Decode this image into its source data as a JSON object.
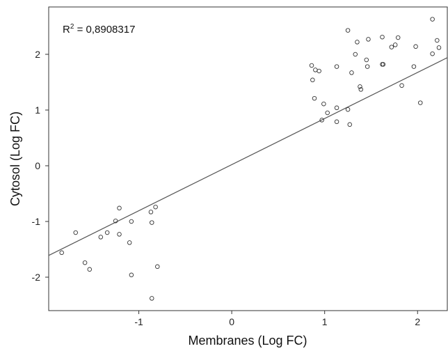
{
  "chart_data": {
    "type": "scatter",
    "title": "",
    "xlabel": "Membranes (Log FC)",
    "ylabel": "Cytosol (Log FC)",
    "annotation": {
      "prefix": "R",
      "superscript": "2",
      "suffix": " = 0,8908317"
    },
    "xlim": [
      -1.97,
      2.32
    ],
    "ylim": [
      -2.6,
      2.85
    ],
    "x_ticks": [
      -1,
      0,
      1,
      2
    ],
    "y_ticks": [
      -2,
      -1,
      0,
      1,
      2
    ],
    "x_tick_labels": [
      "-1",
      "0",
      "1",
      "2"
    ],
    "y_tick_labels": [
      "-2",
      "-1",
      "0",
      "1",
      "2"
    ],
    "grid": false,
    "trendline": {
      "type": "linear",
      "points": [
        [
          -1.97,
          -1.61
        ],
        [
          2.32,
          1.94
        ]
      ]
    },
    "series": [
      {
        "marker": "open-circle",
        "color": "#333333",
        "points": [
          [
            -1.83,
            -1.56
          ],
          [
            -1.68,
            -1.2
          ],
          [
            -1.58,
            -1.74
          ],
          [
            -1.53,
            -1.86
          ],
          [
            -1.41,
            -1.28
          ],
          [
            -1.34,
            -1.2
          ],
          [
            -1.25,
            -0.99
          ],
          [
            -1.21,
            -0.76
          ],
          [
            -1.21,
            -1.23
          ],
          [
            -1.1,
            -1.38
          ],
          [
            -1.08,
            -1.0
          ],
          [
            -1.08,
            -1.96
          ],
          [
            -0.87,
            -0.83
          ],
          [
            -0.86,
            -1.02
          ],
          [
            -0.86,
            -2.38
          ],
          [
            -0.82,
            -0.74
          ],
          [
            -0.8,
            -1.81
          ],
          [
            0.86,
            1.8
          ],
          [
            0.87,
            1.54
          ],
          [
            0.89,
            1.21
          ],
          [
            0.9,
            1.72
          ],
          [
            0.94,
            1.7
          ],
          [
            0.97,
            0.82
          ],
          [
            0.99,
            1.11
          ],
          [
            1.03,
            0.95
          ],
          [
            1.13,
            1.78
          ],
          [
            1.13,
            1.04
          ],
          [
            1.13,
            0.79
          ],
          [
            1.25,
            2.43
          ],
          [
            1.25,
            1.01
          ],
          [
            1.27,
            0.74
          ],
          [
            1.29,
            1.67
          ],
          [
            1.33,
            2.0
          ],
          [
            1.35,
            2.22
          ],
          [
            1.38,
            1.42
          ],
          [
            1.39,
            1.37
          ],
          [
            1.45,
            1.9
          ],
          [
            1.46,
            1.78
          ],
          [
            1.47,
            2.27
          ],
          [
            1.62,
            2.31
          ],
          [
            1.62,
            1.82
          ],
          [
            1.63,
            1.82
          ],
          [
            1.72,
            2.13
          ],
          [
            1.76,
            2.17
          ],
          [
            1.79,
            2.3
          ],
          [
            1.83,
            1.44
          ],
          [
            1.96,
            1.78
          ],
          [
            1.98,
            2.14
          ],
          [
            2.03,
            1.13
          ],
          [
            2.16,
            2.01
          ],
          [
            2.16,
            2.63
          ],
          [
            2.21,
            2.25
          ],
          [
            2.23,
            2.12
          ]
        ]
      }
    ]
  }
}
